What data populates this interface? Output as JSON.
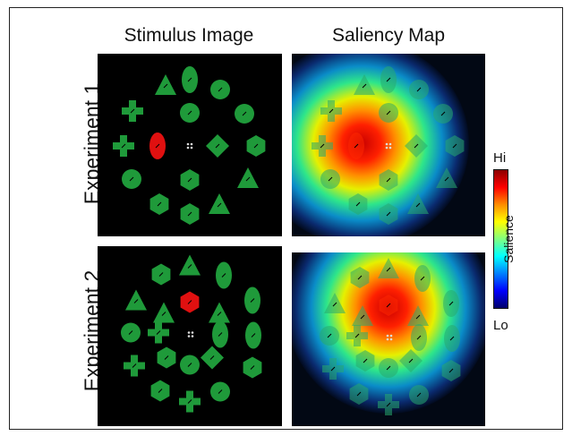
{
  "columns": {
    "stimulus": "Stimulus Image",
    "saliency": "Saliency Map"
  },
  "rows": {
    "exp1": "Experiment 1",
    "exp2": "Experiment 2"
  },
  "colorbar": {
    "hi": "Hi",
    "lo": "Lo",
    "title": "Salience",
    "stops": [
      "#8b0000",
      "#ff0000",
      "#ff8c00",
      "#ffff00",
      "#80ff80",
      "#00ffff",
      "#0080ff",
      "#0000ff",
      "#00006b"
    ]
  },
  "colors": {
    "distractor": "#1f9a3a",
    "target": "#e01010",
    "background": "#000000"
  }
}
